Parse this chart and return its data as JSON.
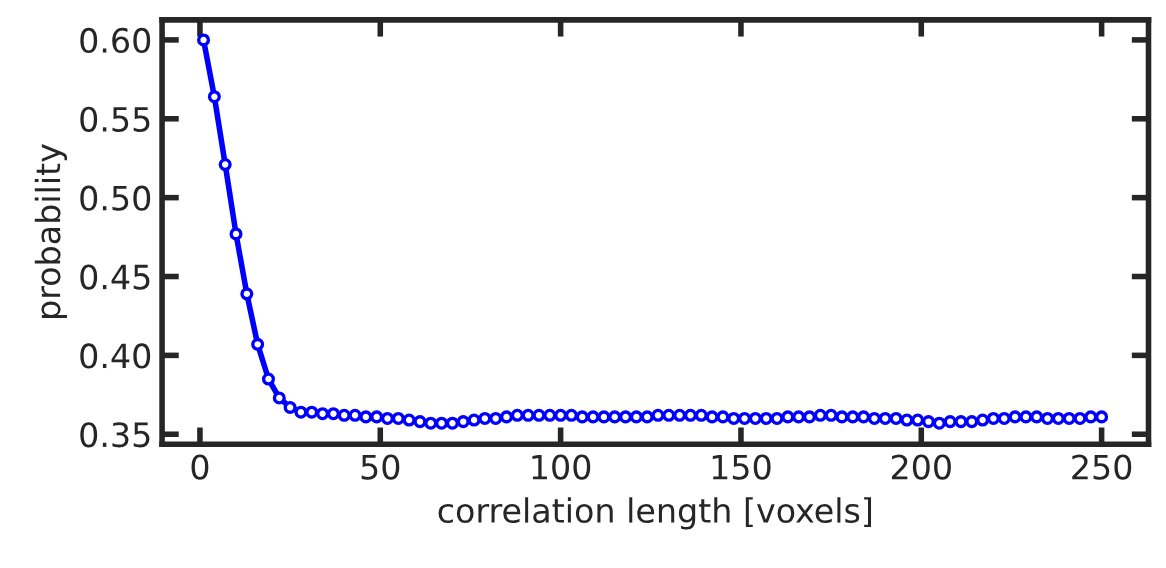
{
  "chart_data": {
    "type": "line",
    "xlabel": "correlation length [voxels]",
    "ylabel": "probability",
    "x": [
      1,
      4,
      7,
      10,
      13,
      16,
      19,
      22,
      25,
      28,
      31,
      34,
      37,
      40,
      43,
      46,
      49,
      52,
      55,
      58,
      61,
      64,
      67,
      70,
      73,
      76,
      79,
      82,
      85,
      88,
      91,
      94,
      97,
      100,
      103,
      106,
      109,
      112,
      115,
      118,
      121,
      124,
      127,
      130,
      133,
      136,
      139,
      142,
      145,
      148,
      151,
      154,
      157,
      160,
      163,
      166,
      169,
      172,
      175,
      178,
      181,
      184,
      187,
      190,
      193,
      196,
      199,
      202,
      205,
      208,
      211,
      214,
      217,
      220,
      223,
      226,
      229,
      232,
      235,
      238,
      241,
      244,
      247,
      250
    ],
    "series": [
      {
        "color": "#0000ff",
        "values": [
          0.6,
          0.564,
          0.521,
          0.477,
          0.439,
          0.407,
          0.385,
          0.373,
          0.367,
          0.364,
          0.364,
          0.363,
          0.363,
          0.362,
          0.362,
          0.361,
          0.361,
          0.36,
          0.36,
          0.359,
          0.358,
          0.357,
          0.357,
          0.357,
          0.358,
          0.359,
          0.36,
          0.36,
          0.361,
          0.362,
          0.362,
          0.362,
          0.362,
          0.362,
          0.362,
          0.361,
          0.361,
          0.361,
          0.361,
          0.361,
          0.361,
          0.361,
          0.362,
          0.362,
          0.362,
          0.362,
          0.362,
          0.361,
          0.361,
          0.36,
          0.36,
          0.36,
          0.36,
          0.36,
          0.361,
          0.361,
          0.361,
          0.362,
          0.362,
          0.361,
          0.361,
          0.361,
          0.36,
          0.36,
          0.36,
          0.359,
          0.359,
          0.358,
          0.357,
          0.358,
          0.358,
          0.358,
          0.359,
          0.36,
          0.36,
          0.361,
          0.361,
          0.361,
          0.36,
          0.36,
          0.36,
          0.36,
          0.361,
          0.361
        ]
      }
    ],
    "xlim": [
      -10.5,
      263
    ],
    "ylim": [
      0.3437,
      0.6127
    ],
    "xticks": [
      0,
      50,
      100,
      150,
      200,
      250
    ],
    "yticks": [
      {
        "value": 0.35,
        "label": "0.35"
      },
      {
        "value": 0.4,
        "label": "0.40"
      },
      {
        "value": 0.45,
        "label": "0.45"
      },
      {
        "value": 0.5,
        "label": "0.50"
      },
      {
        "value": 0.55,
        "label": "0.55"
      },
      {
        "value": 0.6,
        "label": "0.60"
      }
    ],
    "marker": "circle",
    "line_style": "solid",
    "grid": false,
    "legend": false
  }
}
